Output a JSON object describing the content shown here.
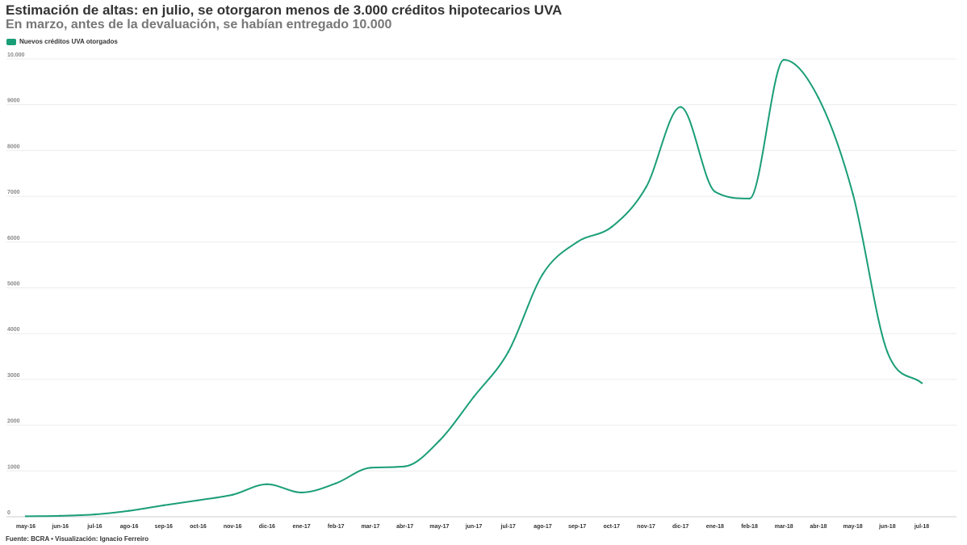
{
  "title": "Estimación de altas: en julio, se otorgaron menos de 3.000 créditos hipotecarios UVA",
  "subtitle": "En marzo, antes de la devaluación, se habían entregado 10.000",
  "source": "Fuente: BCRA • Visualización: Ignacio Ferreiro",
  "colors": {
    "line": "#1a9e77",
    "grid": "#ececec",
    "axis": "#cccccc"
  },
  "chart_data": {
    "type": "line",
    "legend_position": "top-left",
    "grid": true,
    "ylim": [
      0,
      10000
    ],
    "yticks": [
      0,
      1000,
      2000,
      3000,
      4000,
      5000,
      6000,
      7000,
      8000,
      9000,
      10000
    ],
    "ytick_labels": [
      "0",
      "1000",
      "2000",
      "3000",
      "4000",
      "5000",
      "6000",
      "7000",
      "8000",
      "9000",
      "10.000"
    ],
    "categories": [
      "may-16",
      "jun-16",
      "jul-16",
      "ago-16",
      "sep-16",
      "oct-16",
      "nov-16",
      "dic-16",
      "ene-17",
      "feb-17",
      "mar-17",
      "abr-17",
      "may-17",
      "jun-17",
      "jul-17",
      "ago-17",
      "sep-17",
      "oct-17",
      "nov-17",
      "dic-17",
      "ene-18",
      "feb-18",
      "mar-18",
      "abr-18",
      "may-18",
      "jun-18",
      "jul-18"
    ],
    "series": [
      {
        "name": "Nuevos créditos UVA otorgados",
        "values": [
          10,
          20,
          50,
          130,
          250,
          360,
          480,
          710,
          530,
          730,
          1070,
          1100,
          1660,
          2620,
          3600,
          5300,
          6000,
          6330,
          7200,
          8950,
          7100,
          6950,
          9980,
          9150,
          7050,
          3600,
          2920
        ]
      }
    ]
  }
}
